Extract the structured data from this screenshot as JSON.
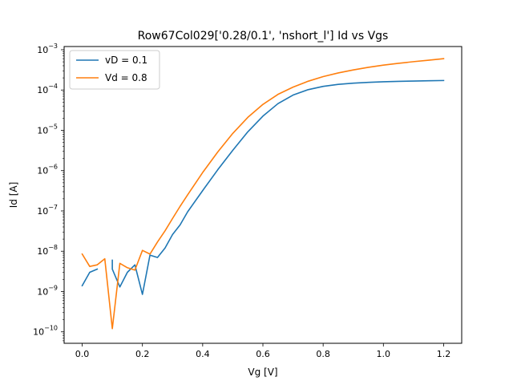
{
  "chart_data": {
    "type": "line",
    "title": "Row67Col029['0.28/0.1', 'nshort_l'] Id vs Vgs",
    "xlabel": "Vg [V]",
    "ylabel": "Id [A]",
    "xscale": "linear",
    "yscale": "log",
    "xlim": [
      -0.06,
      1.26
    ],
    "ylim": [
      5.2e-11,
      0.0012
    ],
    "xticks": [
      {
        "value": 0.0,
        "label": "0.0"
      },
      {
        "value": 0.2,
        "label": "0.2"
      },
      {
        "value": 0.4,
        "label": "0.4"
      },
      {
        "value": 0.6,
        "label": "0.6"
      },
      {
        "value": 0.8,
        "label": "0.8"
      },
      {
        "value": 1.0,
        "label": "1.0"
      },
      {
        "value": 1.2,
        "label": "1.2"
      }
    ],
    "yticks": [
      {
        "exp": -10,
        "base": "10",
        "sup": "−10"
      },
      {
        "exp": -9,
        "base": "10",
        "sup": "−9"
      },
      {
        "exp": -8,
        "base": "10",
        "sup": "−8"
      },
      {
        "exp": -7,
        "base": "10",
        "sup": "−7"
      },
      {
        "exp": -6,
        "base": "10",
        "sup": "−6"
      },
      {
        "exp": -5,
        "base": "10",
        "sup": "−5"
      },
      {
        "exp": -4,
        "base": "10",
        "sup": "−4"
      },
      {
        "exp": -3,
        "base": "10",
        "sup": "−3"
      }
    ],
    "legend_position": "upper-left",
    "series": [
      {
        "name": "vD = 0.1",
        "color": "#1f77b4",
        "x": [
          0.0,
          0.025,
          0.05,
          0.05,
          0.05,
          0.075,
          0.1,
          0.1,
          0.1,
          0.125,
          0.15,
          0.175,
          0.2,
          0.225,
          0.25,
          0.275,
          0.3,
          0.325,
          0.35,
          0.4,
          0.45,
          0.5,
          0.55,
          0.6,
          0.65,
          0.7,
          0.75,
          0.8,
          0.85,
          0.9,
          0.95,
          1.0,
          1.05,
          1.1,
          1.15,
          1.2
        ],
        "y": [
          1.4e-09,
          3e-09,
          3.6e-09,
          null,
          null,
          0,
          null,
          6e-09,
          3.6e-09,
          1.3e-09,
          3e-09,
          4.6e-09,
          8.5e-10,
          8e-09,
          7e-09,
          1.2e-08,
          2.6e-08,
          4.5e-08,
          9.5e-08,
          3.2e-07,
          1.05e-06,
          3.2e-06,
          9.2e-06,
          2.25e-05,
          4.6e-05,
          7.5e-05,
          0.000102,
          0.000123,
          0.000138,
          0.000148,
          0.000155,
          0.00016,
          0.000164,
          0.000167,
          0.00017,
          0.000172
        ]
      },
      {
        "name": "Vd = 0.8",
        "color": "#ff7f0e",
        "x": [
          0.0,
          0.025,
          0.05,
          0.075,
          0.1,
          0.125,
          0.15,
          0.175,
          0.2,
          0.225,
          0.25,
          0.275,
          0.3,
          0.325,
          0.35,
          0.4,
          0.45,
          0.5,
          0.55,
          0.6,
          0.65,
          0.7,
          0.75,
          0.8,
          0.85,
          0.9,
          0.95,
          1.0,
          1.05,
          1.1,
          1.15,
          1.2
        ],
        "y": [
          8.5e-09,
          4.2e-09,
          4.6e-09,
          6.5e-09,
          1.2e-10,
          5e-09,
          3.9e-09,
          3.4e-09,
          1.05e-08,
          8.5e-09,
          1.7e-08,
          3.2e-08,
          6.5e-08,
          1.3e-07,
          2.5e-07,
          9e-07,
          2.9e-06,
          8.4e-06,
          2.1e-05,
          4.4e-05,
          7.8e-05,
          0.000118,
          0.000165,
          0.000215,
          0.000265,
          0.000315,
          0.000365,
          0.000415,
          0.00046,
          0.000505,
          0.00055,
          0.0006
        ]
      }
    ]
  }
}
